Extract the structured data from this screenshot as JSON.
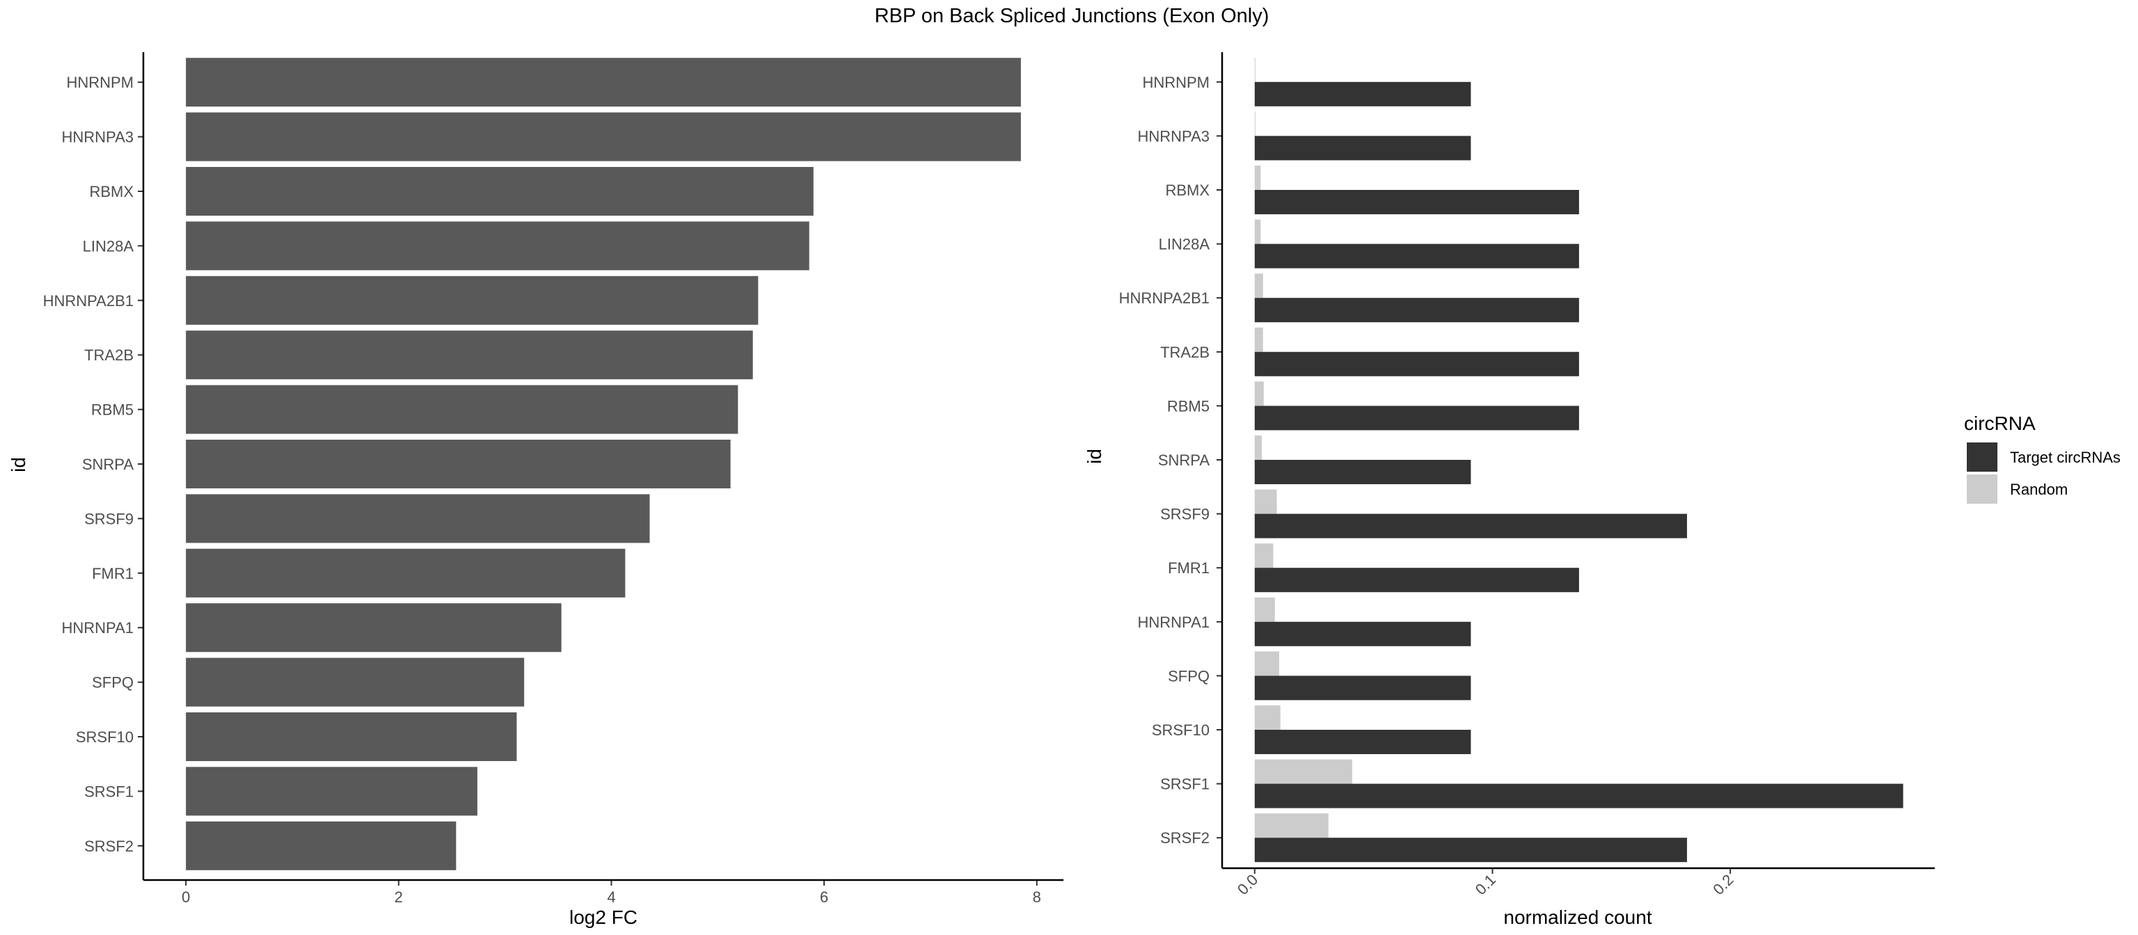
{
  "chart_data": [
    {
      "type": "bar",
      "orientation": "horizontal",
      "title": "RBP on Back Spliced Junctions (Exon Only)",
      "ylabel": "id",
      "xlabel": "log2 FC",
      "categories": [
        "HNRNPM",
        "HNRNPA3",
        "RBMX",
        "LIN28A",
        "HNRNPA2B1",
        "TRA2B",
        "RBM5",
        "SNRPA",
        "SRSF9",
        "FMR1",
        "HNRNPA1",
        "SFPQ",
        "SRSF10",
        "SRSF1",
        "SRSF2"
      ],
      "values": [
        7.85,
        7.85,
        5.9,
        5.86,
        5.38,
        5.33,
        5.19,
        5.12,
        4.36,
        4.13,
        3.53,
        3.18,
        3.11,
        2.74,
        2.54
      ],
      "xlim": [
        -0.4,
        8.25
      ],
      "xticks": [
        0,
        2,
        4,
        6,
        8
      ],
      "color": "#595959",
      "grid": false
    },
    {
      "type": "bar",
      "orientation": "horizontal",
      "ylabel": "id",
      "xlabel": "normalized count",
      "categories": [
        "HNRNPM",
        "HNRNPA3",
        "RBMX",
        "LIN28A",
        "HNRNPA2B1",
        "TRA2B",
        "RBM5",
        "SNRPA",
        "SRSF9",
        "FMR1",
        "HNRNPA1",
        "SFPQ",
        "SRSF10",
        "SRSF1",
        "SRSF2"
      ],
      "xlim": [
        -0.0137,
        0.286
      ],
      "xticks": [
        "0.0",
        "0.1",
        "0.2"
      ],
      "xtick_values": [
        0,
        0.1,
        0.2
      ],
      "tick_label_rotation": -45,
      "legend": {
        "title": "circRNA",
        "position": "right"
      },
      "series": [
        {
          "name": "Target circRNAs",
          "color": "#333333",
          "values": [
            0.0909,
            0.0909,
            0.1364,
            0.1364,
            0.1364,
            0.1364,
            0.1364,
            0.0909,
            0.1818,
            0.1364,
            0.0909,
            0.0909,
            0.0909,
            0.2727,
            0.1818
          ]
        },
        {
          "name": "Random",
          "color": "#cccccc",
          "values": [
            0.0003,
            0.0003,
            0.0025,
            0.0025,
            0.0035,
            0.0035,
            0.0038,
            0.003,
            0.0093,
            0.0078,
            0.0085,
            0.0103,
            0.0108,
            0.041,
            0.031
          ]
        }
      ],
      "grid": false
    }
  ]
}
